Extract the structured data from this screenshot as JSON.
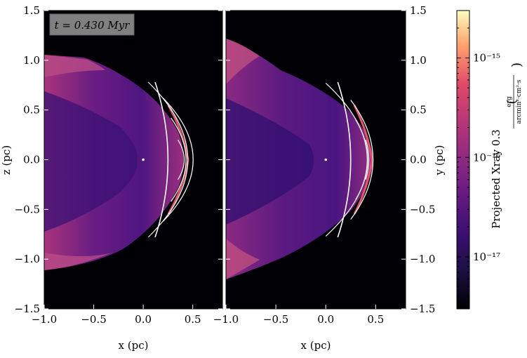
{
  "chart_data": {
    "type": "heatmap",
    "annotation": "t = 0.430 Myr",
    "colormap": "magma",
    "colors": {
      "background": "#000004",
      "shell_dark": "#3b0f70",
      "shell_mid": "#8c2981",
      "shell_bright": "#de4968",
      "shell_peak": "#fe9f6d",
      "contour": "#ffffff",
      "annotation_box": "#808080"
    },
    "panels": [
      {
        "name": "left",
        "xlabel": "x  (pc)",
        "ylabel": "z  (pc)",
        "xlim": [
          -1.0,
          0.8
        ],
        "ylim": [
          -1.5,
          1.5
        ],
        "xticks": [
          "−1.0",
          "−0.5",
          "0.0",
          "0.5"
        ],
        "yticks": [
          "−1.5",
          "−1.0",
          "−0.5",
          "0.0",
          "0.5",
          "1.0",
          "1.5"
        ],
        "star": [
          0.0,
          0.0
        ]
      },
      {
        "name": "right",
        "xlabel": "x  (pc)",
        "ylabel": "y  (pc)",
        "xlim": [
          -1.0,
          0.8
        ],
        "ylim": [
          -1.5,
          1.5
        ],
        "xticks": [
          "−1.0",
          "−0.5",
          "0.0",
          "0.5"
        ],
        "yticks": [
          "−1.5",
          "−1.0",
          "−0.5",
          "0.0",
          "0.5",
          "1.0",
          "1.5"
        ],
        "star": [
          0.0,
          0.0
        ]
      }
    ],
    "colorbar": {
      "label": "Projected Xray 0.3",
      "unit_numerator": "erg",
      "unit_denominator": "arcmin²·cm²·s",
      "scale": "log",
      "range": [
        3e-18,
        3e-15
      ],
      "ticks": [
        {
          "value": 1e-15,
          "label": "10⁻¹⁵"
        },
        {
          "value": 1e-16,
          "label": "10⁻¹⁶"
        },
        {
          "value": 1e-17,
          "label": "10⁻¹⁷"
        }
      ]
    }
  }
}
